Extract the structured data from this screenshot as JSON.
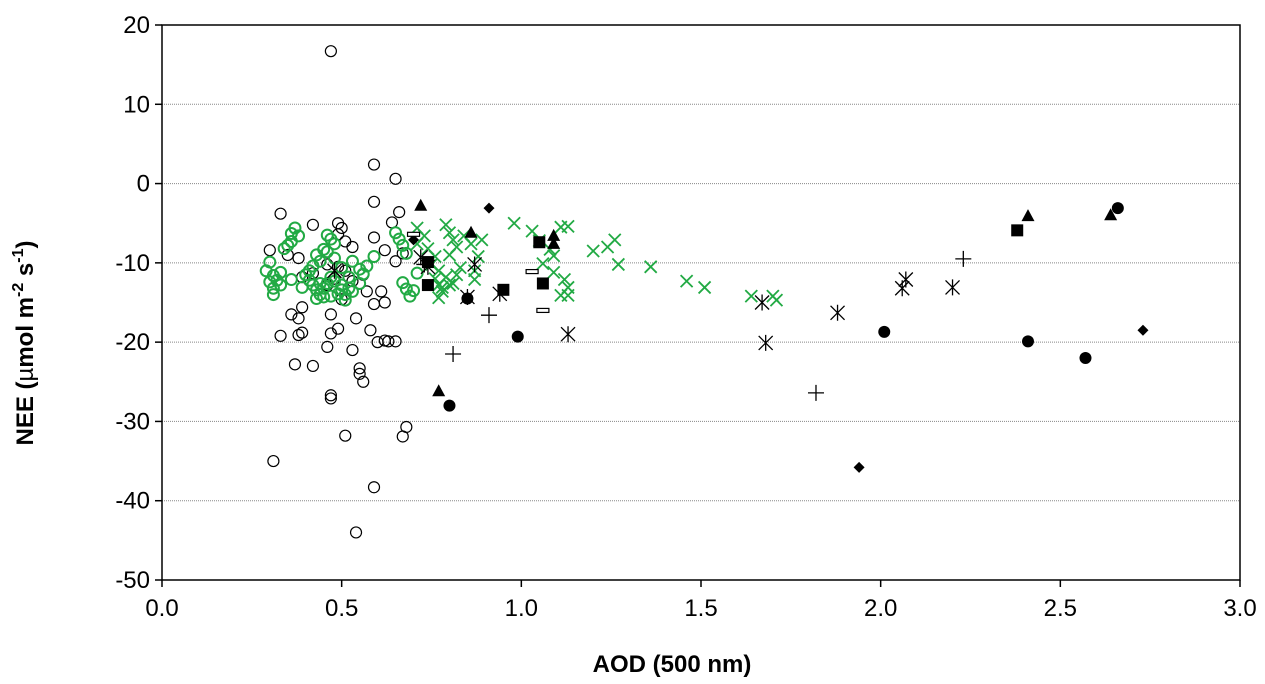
{
  "chart_data": {
    "type": "scatter",
    "title": "",
    "xlabel": "AOD (500 nm)",
    "ylabel": {
      "prefix": "NEE (",
      "mu": "µ",
      "mid1": "mol m",
      "sup1": "-2",
      "mid2": " s",
      "sup2": "-1",
      "suffix": ")"
    },
    "xlim": [
      0,
      3
    ],
    "ylim": [
      -50,
      20
    ],
    "xticks": [
      "0.0",
      "0.5",
      "1.0",
      "1.5",
      "2.0",
      "2.5",
      "3.0"
    ],
    "yticks": [
      "20",
      "10",
      "0",
      "-10",
      "-20",
      "-30",
      "-40",
      "-50"
    ],
    "grid": "horizontal",
    "colors": {
      "black": "#000000",
      "green": "#22aa44",
      "grid": "#888888"
    },
    "series": [
      {
        "marker": "open-circle",
        "color": "#000000",
        "points": [
          [
            0.47,
            16.7
          ],
          [
            0.59,
            2.4
          ],
          [
            0.65,
            0.6
          ],
          [
            0.59,
            -2.3
          ],
          [
            0.66,
            -3.6
          ],
          [
            0.33,
            -3.8
          ],
          [
            0.64,
            -4.9
          ],
          [
            0.49,
            -5
          ],
          [
            0.42,
            -5.2
          ],
          [
            0.5,
            -5.6
          ],
          [
            0.49,
            -6.4
          ],
          [
            0.59,
            -6.8
          ],
          [
            0.51,
            -7.3
          ],
          [
            0.53,
            -8
          ],
          [
            0.62,
            -8.4
          ],
          [
            0.3,
            -8.4
          ],
          [
            0.67,
            -8.8
          ],
          [
            0.35,
            -9
          ],
          [
            0.38,
            -9.4
          ],
          [
            0.65,
            -9.8
          ],
          [
            0.46,
            -10.2
          ],
          [
            0.49,
            -10.5
          ],
          [
            0.51,
            -11
          ],
          [
            0.56,
            -11.5
          ],
          [
            0.42,
            -11.3
          ],
          [
            0.39,
            -11.8
          ],
          [
            0.48,
            -12
          ],
          [
            0.53,
            -12.3
          ],
          [
            0.46,
            -12.8
          ],
          [
            0.57,
            -13.6
          ],
          [
            0.61,
            -13.6
          ],
          [
            0.44,
            -14
          ],
          [
            0.5,
            -14.6
          ],
          [
            0.59,
            -15.2
          ],
          [
            0.39,
            -15.6
          ],
          [
            0.62,
            -15
          ],
          [
            0.47,
            -16.5
          ],
          [
            0.36,
            -16.5
          ],
          [
            0.54,
            -17
          ],
          [
            0.38,
            -17
          ],
          [
            0.58,
            -18.5
          ],
          [
            0.49,
            -18.3
          ],
          [
            0.39,
            -18.8
          ],
          [
            0.47,
            -18.9
          ],
          [
            0.62,
            -19.8
          ],
          [
            0.63,
            -19.9
          ],
          [
            0.65,
            -19.9
          ],
          [
            0.33,
            -19.2
          ],
          [
            0.38,
            -19.1
          ],
          [
            0.6,
            -20
          ],
          [
            0.46,
            -20.6
          ],
          [
            0.53,
            -21
          ],
          [
            0.37,
            -22.8
          ],
          [
            0.42,
            -23
          ],
          [
            0.55,
            -23.3
          ],
          [
            0.55,
            -24
          ],
          [
            0.56,
            -25
          ],
          [
            0.47,
            -26.7
          ],
          [
            0.47,
            -27.1
          ],
          [
            0.68,
            -30.7
          ],
          [
            0.67,
            -31.9
          ],
          [
            0.51,
            -31.8
          ],
          [
            0.31,
            -35
          ],
          [
            0.59,
            -38.3
          ],
          [
            0.54,
            -44
          ]
        ]
      },
      {
        "marker": "open-circle",
        "color": "#22aa44",
        "points": [
          [
            0.37,
            -5.6
          ],
          [
            0.36,
            -6.3
          ],
          [
            0.38,
            -6.6
          ],
          [
            0.36,
            -7.3
          ],
          [
            0.35,
            -7.8
          ],
          [
            0.34,
            -8.2
          ],
          [
            0.46,
            -6.5
          ],
          [
            0.47,
            -7
          ],
          [
            0.48,
            -7.6
          ],
          [
            0.45,
            -8.3
          ],
          [
            0.43,
            -9
          ],
          [
            0.44,
            -9.8
          ],
          [
            0.42,
            -10.4
          ],
          [
            0.41,
            -11
          ],
          [
            0.4,
            -11.5
          ],
          [
            0.41,
            -12.2
          ],
          [
            0.42,
            -12.8
          ],
          [
            0.43,
            -13.4
          ],
          [
            0.44,
            -14
          ],
          [
            0.45,
            -13.2
          ],
          [
            0.46,
            -12.6
          ],
          [
            0.47,
            -11.8
          ],
          [
            0.48,
            -12.3
          ],
          [
            0.5,
            -12.8
          ],
          [
            0.52,
            -13.2
          ],
          [
            0.51,
            -14
          ],
          [
            0.53,
            -13.6
          ],
          [
            0.49,
            -13.9
          ],
          [
            0.47,
            -14.2
          ],
          [
            0.55,
            -12.6
          ],
          [
            0.56,
            -11.4
          ],
          [
            0.57,
            -10.4
          ],
          [
            0.59,
            -9.2
          ],
          [
            0.53,
            -9.8
          ],
          [
            0.55,
            -10.8
          ],
          [
            0.52,
            -11.8
          ],
          [
            0.5,
            -10.6
          ],
          [
            0.48,
            -9.4
          ],
          [
            0.46,
            -8.6
          ],
          [
            0.3,
            -9.9
          ],
          [
            0.29,
            -11
          ],
          [
            0.31,
            -11.6
          ],
          [
            0.3,
            -12.4
          ],
          [
            0.31,
            -13.2
          ],
          [
            0.31,
            -14
          ],
          [
            0.32,
            -12.2
          ],
          [
            0.33,
            -11.2
          ],
          [
            0.33,
            -12.8
          ],
          [
            0.65,
            -6.2
          ],
          [
            0.66,
            -7
          ],
          [
            0.67,
            -7.8
          ],
          [
            0.68,
            -8.8
          ],
          [
            0.67,
            -12.5
          ],
          [
            0.68,
            -13.3
          ],
          [
            0.69,
            -14.2
          ],
          [
            0.7,
            -13.5
          ],
          [
            0.71,
            -11.3
          ],
          [
            0.43,
            -14.5
          ],
          [
            0.45,
            -14.3
          ],
          [
            0.51,
            -14.7
          ],
          [
            0.5,
            -13.4
          ],
          [
            0.44,
            -12.6
          ],
          [
            0.39,
            -13.1
          ],
          [
            0.36,
            -12.1
          ]
        ]
      },
      {
        "marker": "x-cross",
        "color": "#22aa44",
        "points": [
          [
            0.71,
            -5.6
          ],
          [
            0.73,
            -6.6
          ],
          [
            0.71,
            -7.6
          ],
          [
            0.74,
            -8.2
          ],
          [
            0.76,
            -9.2
          ],
          [
            0.75,
            -10.2
          ],
          [
            0.77,
            -11
          ],
          [
            0.76,
            -12
          ],
          [
            0.77,
            -12.8
          ],
          [
            0.78,
            -13.6
          ],
          [
            0.77,
            -14.4
          ],
          [
            0.79,
            -5.2
          ],
          [
            0.8,
            -6.2
          ],
          [
            0.81,
            -7.1
          ],
          [
            0.82,
            -8
          ],
          [
            0.8,
            -9
          ],
          [
            0.83,
            -10.6
          ],
          [
            0.82,
            -11.5
          ],
          [
            0.81,
            -12.6
          ],
          [
            0.79,
            -11.8
          ],
          [
            0.8,
            -12.8
          ],
          [
            0.78,
            -13.1
          ],
          [
            0.84,
            -6.6
          ],
          [
            0.86,
            -7.6
          ],
          [
            0.88,
            -9.2
          ],
          [
            0.87,
            -11
          ],
          [
            0.87,
            -12.1
          ],
          [
            0.89,
            -7.1
          ],
          [
            0.98,
            -5
          ],
          [
            1.03,
            -6
          ],
          [
            1.05,
            -7.2
          ],
          [
            1.08,
            -8.3
          ],
          [
            1.09,
            -9.1
          ],
          [
            1.06,
            -10.1
          ],
          [
            1.11,
            -5.5
          ],
          [
            1.12,
            -12.1
          ],
          [
            1.13,
            -13.1
          ],
          [
            1.11,
            -14.1
          ],
          [
            1.09,
            -11.2
          ],
          [
            1.13,
            -5.4
          ],
          [
            1.13,
            -14.1
          ],
          [
            1.2,
            -8.5
          ],
          [
            1.24,
            -8
          ],
          [
            1.26,
            -7.1
          ],
          [
            1.27,
            -10.2
          ],
          [
            1.36,
            -10.5
          ],
          [
            1.46,
            -12.3
          ],
          [
            1.51,
            -13.1
          ],
          [
            1.64,
            -14.2
          ],
          [
            1.7,
            -14.2
          ],
          [
            1.71,
            -14.7
          ]
        ]
      },
      {
        "marker": "asterisk",
        "color": "#000000",
        "points": [
          [
            0.48,
            -11
          ],
          [
            0.72,
            -9.3
          ],
          [
            0.74,
            -10.5
          ],
          [
            0.85,
            -14.3
          ],
          [
            0.87,
            -10.2
          ],
          [
            0.94,
            -13.9
          ],
          [
            1.13,
            -19
          ],
          [
            1.67,
            -15
          ],
          [
            1.68,
            -20.1
          ],
          [
            1.88,
            -16.3
          ],
          [
            2.06,
            -13.2
          ],
          [
            2.07,
            -12.1
          ],
          [
            2.2,
            -13.1
          ]
        ]
      },
      {
        "marker": "plus",
        "color": "#000000",
        "points": [
          [
            0.73,
            -10.2
          ],
          [
            0.81,
            -21.5
          ],
          [
            0.91,
            -16.6
          ],
          [
            1.82,
            -26.4
          ],
          [
            2.23,
            -9.5
          ]
        ]
      },
      {
        "marker": "filled-triangle",
        "color": "#000000",
        "points": [
          [
            0.72,
            -2.8
          ],
          [
            0.86,
            -6.2
          ],
          [
            0.77,
            -26.2
          ],
          [
            1.09,
            -6.6
          ],
          [
            1.09,
            -7.6
          ],
          [
            2.41,
            -4.1
          ],
          [
            2.64,
            -4
          ]
        ]
      },
      {
        "marker": "filled-circle",
        "color": "#000000",
        "points": [
          [
            0.8,
            -28
          ],
          [
            0.85,
            -14.5
          ],
          [
            0.99,
            -19.3
          ],
          [
            2.01,
            -18.7
          ],
          [
            2.41,
            -19.9
          ],
          [
            2.57,
            -22
          ],
          [
            2.66,
            -3.1
          ]
        ]
      },
      {
        "marker": "filled-square",
        "color": "#000000",
        "points": [
          [
            0.74,
            -9.9
          ],
          [
            0.74,
            -12.8
          ],
          [
            0.95,
            -13.4
          ],
          [
            1.05,
            -7.4
          ],
          [
            1.06,
            -12.6
          ],
          [
            2.38,
            -5.9
          ]
        ]
      },
      {
        "marker": "filled-diamond",
        "color": "#000000",
        "points": [
          [
            0.7,
            -7.1
          ],
          [
            0.91,
            -3.1
          ],
          [
            1.94,
            -35.8
          ],
          [
            2.73,
            -18.5
          ]
        ]
      },
      {
        "marker": "open-bar",
        "color": "#000000",
        "points": [
          [
            0.7,
            -6.4
          ],
          [
            1.03,
            -11.1
          ],
          [
            1.06,
            -16
          ]
        ]
      }
    ]
  }
}
